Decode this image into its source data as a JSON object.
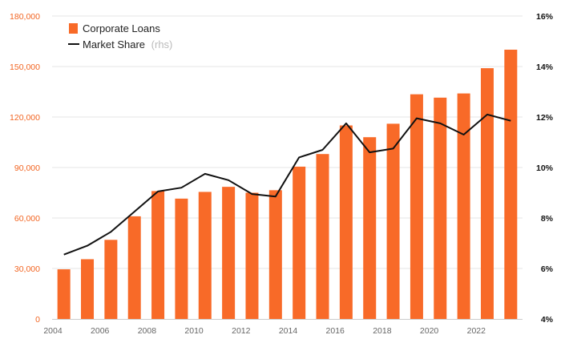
{
  "chart_data": {
    "type": "bar",
    "x": [
      2004,
      2005,
      2006,
      2007,
      2008,
      2009,
      2010,
      2011,
      2012,
      2013,
      2014,
      2015,
      2016,
      2017,
      2018,
      2019,
      2020,
      2021,
      2022,
      2023
    ],
    "x_tick_labels": [
      "2004",
      "2006",
      "2008",
      "2010",
      "2012",
      "2014",
      "2016",
      "2018",
      "2020",
      "2022"
    ],
    "series": [
      {
        "name": "Corporate Loans",
        "type": "bar",
        "axis": "left",
        "color": "#f86a28",
        "values": [
          29500,
          35500,
          47000,
          61000,
          76000,
          71500,
          75500,
          78500,
          75000,
          76500,
          90500,
          98000,
          115000,
          108000,
          116000,
          133500,
          131500,
          134000,
          149000,
          160000
        ]
      },
      {
        "name": "Market Share",
        "name_suffix": "(rhs)",
        "type": "line",
        "axis": "right",
        "color": "#111111",
        "values": [
          6.55,
          6.9,
          7.45,
          8.25,
          9.05,
          9.2,
          9.75,
          9.5,
          8.95,
          8.85,
          10.4,
          10.7,
          11.75,
          10.6,
          10.75,
          11.95,
          11.75,
          11.3,
          12.1,
          11.85
        ]
      }
    ],
    "y_left": {
      "ylim": [
        0,
        180000
      ],
      "ticks": [
        0,
        30000,
        60000,
        90000,
        120000,
        150000,
        180000
      ],
      "tick_labels": [
        "0",
        "30,000",
        "60,000",
        "90,000",
        "120,000",
        "150,000",
        "180,000"
      ],
      "color": "#f26522"
    },
    "y_right": {
      "ylim": [
        4,
        16
      ],
      "ticks": [
        4,
        6,
        8,
        10,
        12,
        14,
        16
      ],
      "tick_labels": [
        "4%",
        "6%",
        "8%",
        "10%",
        "12%",
        "14%",
        "16%"
      ],
      "color": "#111111"
    },
    "grid": true,
    "legend_position": "top-left"
  }
}
